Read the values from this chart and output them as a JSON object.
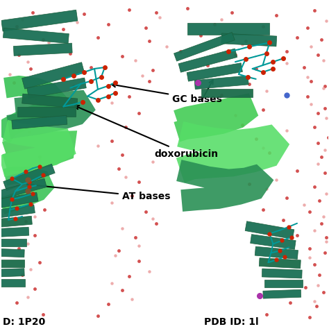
{
  "background_color": "#ffffff",
  "fig_width": 4.74,
  "fig_height": 4.74,
  "dpi": 100,
  "label_gc": "GC bases",
  "label_doxo": "doxorubicin",
  "label_at": "AT bases",
  "pdb_left": "D: 1P20",
  "pdb_right": "PDB ID: 1l",
  "text_color": "#000000",
  "label_fontsize": 10,
  "pdb_fontsize": 10,
  "label_fontweight": "bold",
  "red_dot_color": "#cc3333",
  "pink_dot_color": "#e8a0a0",
  "purple_dot_color": "#7755aa",
  "brown_dot_color": "#7a5533"
}
